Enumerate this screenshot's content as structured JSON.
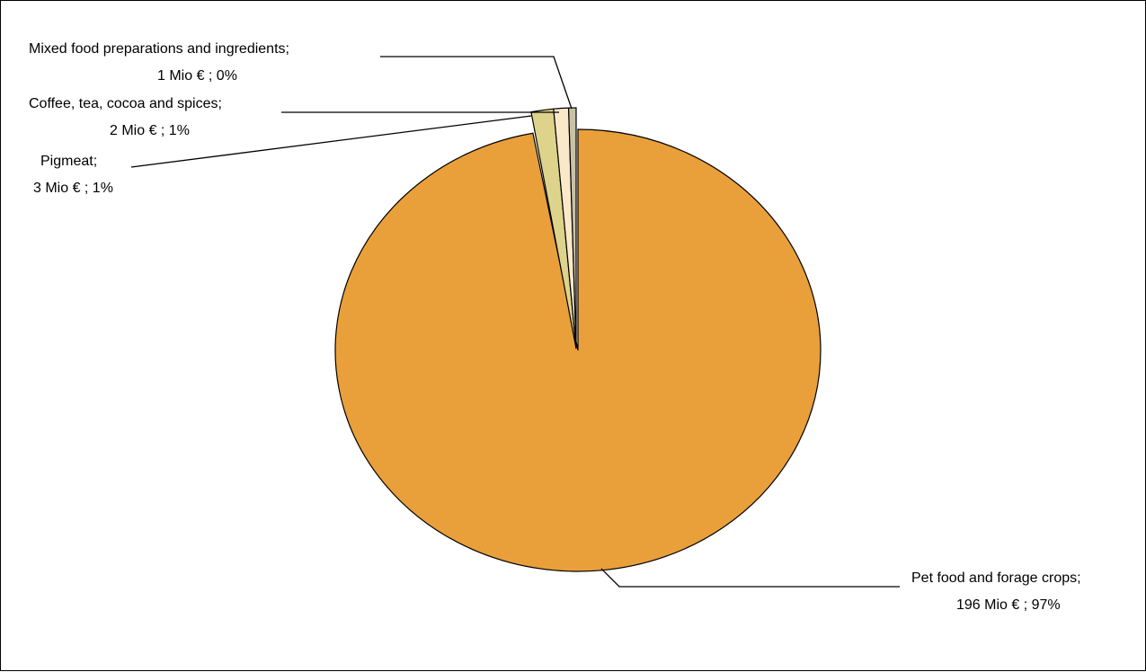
{
  "chart_data": {
    "type": "pie",
    "title": "",
    "slices": [
      {
        "name": "Pet food and forage crops",
        "value": 196,
        "percent": 97,
        "color": "#E9A03B",
        "name_label": "Pet food and forage crops;",
        "value_label": "196 Mio € ; 97%"
      },
      {
        "name": "Pigmeat",
        "value": 3,
        "percent": 1,
        "color": "#DDD38A",
        "name_label": "Pigmeat;",
        "value_label": "3 Mio € ; 1%"
      },
      {
        "name": "Coffee, tea, cocoa and spices",
        "value": 2,
        "percent": 1,
        "color": "#FAE8C8",
        "name_label": "Coffee, tea, cocoa and spices;",
        "value_label": "2 Mio € ; 1%"
      },
      {
        "name": "Mixed food preparations and ingredients",
        "value": 1,
        "percent": 0,
        "color": "#C9C3A6",
        "name_label": "Mixed food preparations and ingredients;",
        "value_label": "1 Mio € ; 0%"
      }
    ],
    "legend": "none",
    "label_style": "outside-with-leader-lines"
  }
}
